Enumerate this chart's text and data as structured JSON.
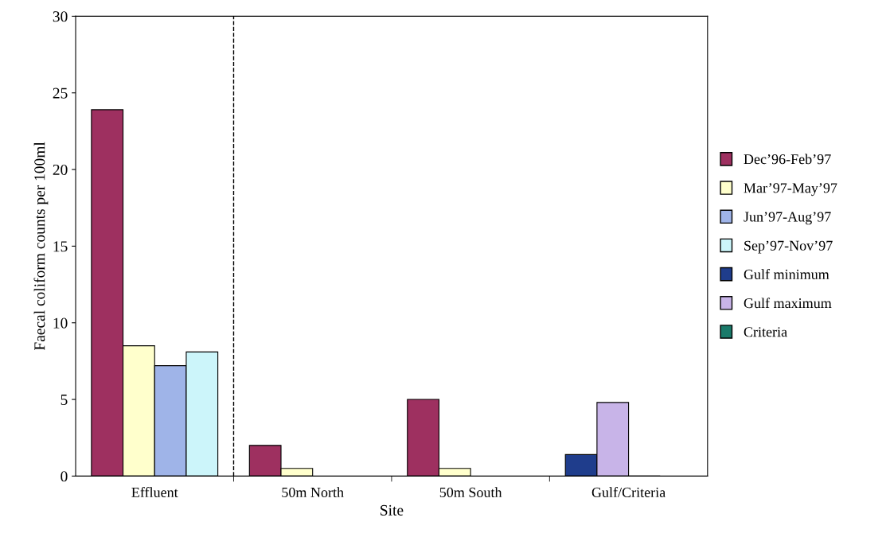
{
  "chart_data": {
    "type": "bar",
    "xlabel": "Site",
    "ylabel": "Faecal coliform counts per 100ml",
    "categories": [
      "Effluent",
      "50m North",
      "50m South",
      "Gulf/Criteria"
    ],
    "series": [
      {
        "name": "Dec’96-Feb’97",
        "color": "#9e3060",
        "values": [
          23.9,
          2.0,
          5.0,
          null
        ]
      },
      {
        "name": "Mar’97-May’97",
        "color": "#ffffcc",
        "values": [
          8.5,
          0.5,
          0.5,
          null
        ]
      },
      {
        "name": "Jun’97-Aug’97",
        "color": "#9fb4e8",
        "values": [
          7.2,
          null,
          null,
          null
        ]
      },
      {
        "name": "Sep’97-Nov’97",
        "color": "#ccf5fa",
        "values": [
          8.1,
          null,
          null,
          null
        ]
      },
      {
        "name": "Gulf minimum",
        "color": "#1f3d8c",
        "values": [
          null,
          null,
          null,
          1.4
        ]
      },
      {
        "name": "Gulf maximum",
        "color": "#c8b4e8",
        "values": [
          null,
          null,
          null,
          4.8
        ]
      },
      {
        "name": "Criteria",
        "color": "#1a7a6a",
        "values": [
          null,
          null,
          null,
          0
        ]
      }
    ],
    "ylim": [
      0,
      30
    ],
    "yticks": [
      0,
      5,
      10,
      15,
      20,
      25,
      30
    ],
    "grid": false,
    "legend": "right"
  }
}
